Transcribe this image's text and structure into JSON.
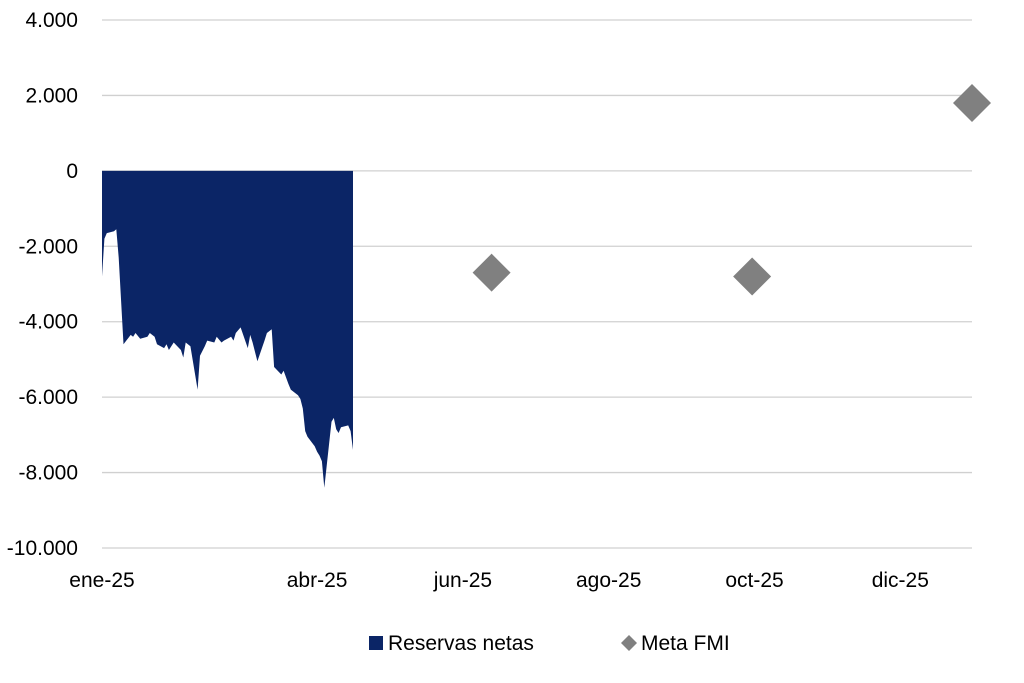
{
  "chart_data": {
    "type": "area",
    "title": "",
    "xlabel": "",
    "ylabel": "",
    "ylim": [
      -10000,
      4000
    ],
    "y_ticks": [
      {
        "value": 4000,
        "label": "4.000"
      },
      {
        "value": 2000,
        "label": "2.000"
      },
      {
        "value": 0,
        "label": "0"
      },
      {
        "value": -2000,
        "label": "-2.000"
      },
      {
        "value": -4000,
        "label": "-4.000"
      },
      {
        "value": -6000,
        "label": "-6.000"
      },
      {
        "value": -8000,
        "label": "-8.000"
      },
      {
        "value": -10000,
        "label": "-10.000"
      }
    ],
    "x_range": [
      "2025-01-01",
      "2025-12-31"
    ],
    "x_ticks": [
      {
        "date": "2025-01-01",
        "label": "ene-25"
      },
      {
        "date": "2025-04-01",
        "label": "abr-25"
      },
      {
        "date": "2025-06-01",
        "label": "jun-25"
      },
      {
        "date": "2025-08-01",
        "label": "ago-25"
      },
      {
        "date": "2025-10-01",
        "label": "oct-25"
      },
      {
        "date": "2025-12-01",
        "label": "dic-25"
      }
    ],
    "grid": true,
    "legend_position": "bottom",
    "series": [
      {
        "name": "Reservas netas",
        "type": "area",
        "color": "#0b2566",
        "points": [
          [
            "2025-01-01",
            -2800
          ],
          [
            "2025-01-02",
            -1800
          ],
          [
            "2025-01-03",
            -1650
          ],
          [
            "2025-01-06",
            -1600
          ],
          [
            "2025-01-07",
            -1550
          ],
          [
            "2025-01-08",
            -2300
          ],
          [
            "2025-01-10",
            -4600
          ],
          [
            "2025-01-13",
            -4350
          ],
          [
            "2025-01-14",
            -4400
          ],
          [
            "2025-01-15",
            -4300
          ],
          [
            "2025-01-17",
            -4450
          ],
          [
            "2025-01-20",
            -4400
          ],
          [
            "2025-01-21",
            -4300
          ],
          [
            "2025-01-23",
            -4400
          ],
          [
            "2025-01-24",
            -4600
          ],
          [
            "2025-01-27",
            -4700
          ],
          [
            "2025-01-28",
            -4600
          ],
          [
            "2025-01-29",
            -4750
          ],
          [
            "2025-01-31",
            -4550
          ],
          [
            "2025-02-03",
            -4750
          ],
          [
            "2025-02-04",
            -4950
          ],
          [
            "2025-02-05",
            -4550
          ],
          [
            "2025-02-07",
            -4650
          ],
          [
            "2025-02-10",
            -5800
          ],
          [
            "2025-02-11",
            -4900
          ],
          [
            "2025-02-13",
            -4650
          ],
          [
            "2025-02-14",
            -4500
          ],
          [
            "2025-02-17",
            -4550
          ],
          [
            "2025-02-18",
            -4400
          ],
          [
            "2025-02-20",
            -4550
          ],
          [
            "2025-02-21",
            -4500
          ],
          [
            "2025-02-24",
            -4400
          ],
          [
            "2025-02-25",
            -4500
          ],
          [
            "2025-02-26",
            -4300
          ],
          [
            "2025-02-28",
            -4150
          ],
          [
            "2025-03-03",
            -4700
          ],
          [
            "2025-03-04",
            -4350
          ],
          [
            "2025-03-05",
            -4550
          ],
          [
            "2025-03-07",
            -5050
          ],
          [
            "2025-03-10",
            -4500
          ],
          [
            "2025-03-11",
            -4300
          ],
          [
            "2025-03-12",
            -4250
          ],
          [
            "2025-03-13",
            -4200
          ],
          [
            "2025-03-14",
            -5200
          ],
          [
            "2025-03-17",
            -5400
          ],
          [
            "2025-03-18",
            -5300
          ],
          [
            "2025-03-20",
            -5650
          ],
          [
            "2025-03-21",
            -5800
          ],
          [
            "2025-03-24",
            -5950
          ],
          [
            "2025-03-25",
            -6050
          ],
          [
            "2025-03-26",
            -6300
          ],
          [
            "2025-03-27",
            -6900
          ],
          [
            "2025-03-28",
            -7050
          ],
          [
            "2025-03-31",
            -7300
          ],
          [
            "2025-04-01",
            -7450
          ],
          [
            "2025-04-02",
            -7550
          ],
          [
            "2025-04-03",
            -7700
          ],
          [
            "2025-04-04",
            -8400
          ],
          [
            "2025-04-07",
            -6650
          ],
          [
            "2025-04-08",
            -6550
          ],
          [
            "2025-04-09",
            -6850
          ],
          [
            "2025-04-10",
            -6950
          ],
          [
            "2025-04-11",
            -6800
          ],
          [
            "2025-04-14",
            -6750
          ],
          [
            "2025-04-15",
            -6900
          ],
          [
            "2025-04-16",
            -7400
          ]
        ]
      },
      {
        "name": "Meta FMI",
        "type": "scatter",
        "marker": "diamond",
        "color": "#808080",
        "points": [
          [
            "2025-06-13",
            -2700
          ],
          [
            "2025-09-30",
            -2800
          ],
          [
            "2025-12-31",
            1800
          ]
        ]
      }
    ]
  }
}
